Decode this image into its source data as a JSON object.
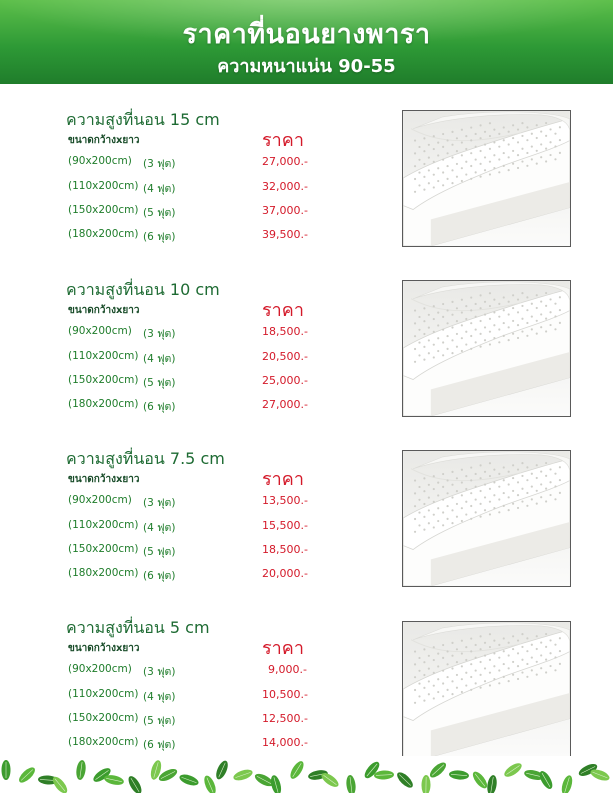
{
  "header": {
    "title": "ราคาที่นอนยางพารา",
    "subtitle": "ความหนาแน่น 90-55"
  },
  "sections": [
    {
      "title": "ความสูงที่นอน 15 cm",
      "size_header": "ขนาดกว้างxยาว",
      "price_header": "ราคา",
      "rows": [
        {
          "dim": "(90x200cm)",
          "feet": "(3 ฟุต)",
          "price": "27,000.-"
        },
        {
          "dim": "(110x200cm)",
          "feet": "(4 ฟุต)",
          "price": "32,000.-"
        },
        {
          "dim": "(150x200cm)",
          "feet": "(5 ฟุต)",
          "price": "37,000.-"
        },
        {
          "dim": "(180x200cm)",
          "feet": "(6 ฟุต)",
          "price": "39,500.-"
        }
      ]
    },
    {
      "title": "ความสูงที่นอน 10 cm",
      "size_header": "ขนาดกว้างxยาว",
      "price_header": "ราคา",
      "rows": [
        {
          "dim": "(90x200cm)",
          "feet": "(3 ฟุต)",
          "price": "18,500.-"
        },
        {
          "dim": "(110x200cm)",
          "feet": "(4 ฟุต)",
          "price": "20,500.-"
        },
        {
          "dim": "(150x200cm)",
          "feet": "(5 ฟุต)",
          "price": "25,000.-"
        },
        {
          "dim": "(180x200cm)",
          "feet": "(6 ฟุต)",
          "price": "27,000.-"
        }
      ]
    },
    {
      "title": "ความสูงที่นอน 7.5 cm",
      "size_header": "ขนาดกว้างxยาว",
      "price_header": "ราคา",
      "rows": [
        {
          "dim": "(90x200cm)",
          "feet": "(3 ฟุต)",
          "price": "13,500.-"
        },
        {
          "dim": "(110x200cm)",
          "feet": "(4 ฟุต)",
          "price": "15,500.-"
        },
        {
          "dim": "(150x200cm)",
          "feet": "(5 ฟุต)",
          "price": "18,500.-"
        },
        {
          "dim": "(180x200cm)",
          "feet": "(6 ฟุต)",
          "price": "20,000.-"
        }
      ]
    },
    {
      "title": "ความสูงที่นอน 5 cm",
      "size_header": "ขนาดกว้างxยาว",
      "price_header": "ราคา",
      "rows": [
        {
          "dim": "(90x200cm)",
          "feet": "(3 ฟุต)",
          "price": "9,000.-"
        },
        {
          "dim": "(110x200cm)",
          "feet": "(4 ฟุต)",
          "price": "10,500.-"
        },
        {
          "dim": "(150x200cm)",
          "feet": "(5 ฟุต)",
          "price": "12,500.-"
        },
        {
          "dim": "(180x200cm)",
          "feet": "(6 ฟุต)",
          "price": "14,000.-"
        }
      ]
    }
  ],
  "colors": {
    "banner_green": "#2e9a36",
    "title_green": "#1e6b33",
    "price_red": "#d41a2a"
  },
  "icons": [
    "latex-mattress-photo",
    "leaf-icon"
  ]
}
